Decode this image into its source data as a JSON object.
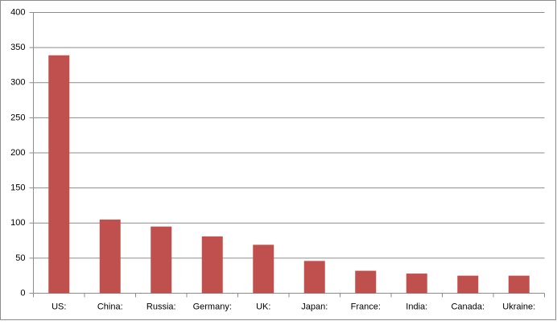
{
  "chart_data": {
    "type": "bar",
    "categories": [
      "US:",
      "China:",
      "Russia:",
      "Germany:",
      "UK:",
      "Japan:",
      "France:",
      "India:",
      "Canada:",
      "Ukraine:"
    ],
    "values": [
      339,
      105,
      95,
      81,
      69,
      46,
      32,
      28,
      25,
      25
    ],
    "color": "#c0504d",
    "ylim": [
      0,
      400
    ],
    "yticks": [
      0,
      50,
      100,
      150,
      200,
      250,
      300,
      350,
      400
    ],
    "grid": true
  }
}
